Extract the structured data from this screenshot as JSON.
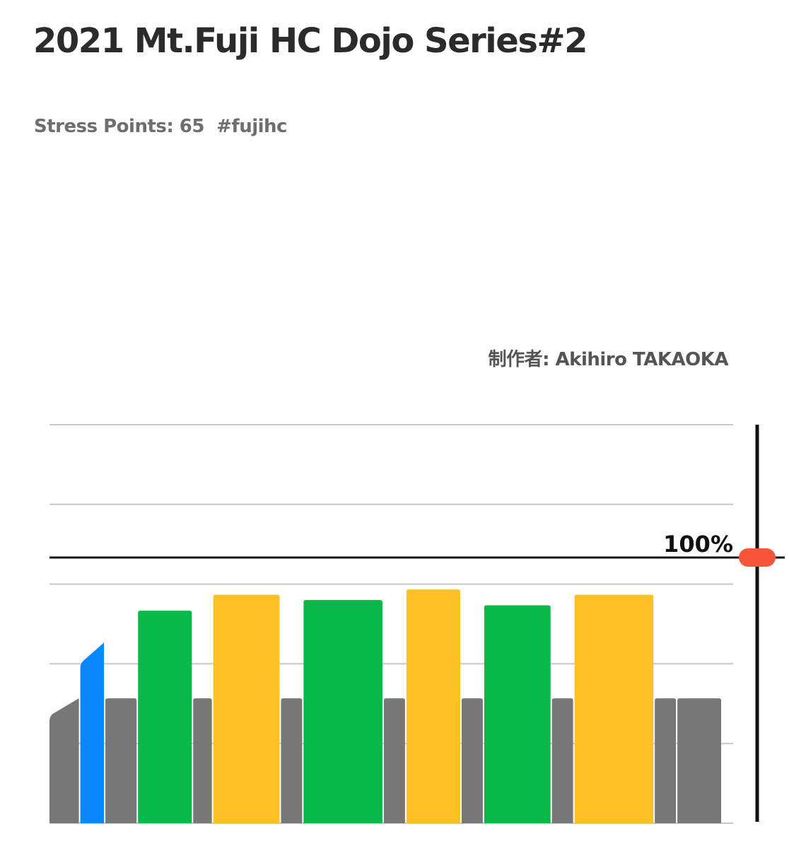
{
  "title": "2021 Mt.Fuji HC Dojo Series#2",
  "subtitle": "Stress Points: 65  #fujihc",
  "author": "制作者: Akihiro TAKAOKA",
  "colors": {
    "recovery": "#777777",
    "current": "#0a87fb",
    "green": "#08b94a",
    "yellow": "#fdc124",
    "marker": "#f5563a",
    "grid": "#c8c8c8",
    "threshold": "#111111"
  },
  "chart_data": {
    "type": "bar",
    "title": "",
    "xlabel": "",
    "ylabel": "",
    "ylim": [
      0,
      150
    ],
    "yticks": [
      0,
      30,
      60,
      90,
      120,
      150
    ],
    "grid": true,
    "threshold": {
      "value": 100,
      "label": "100%"
    },
    "current_marker": {
      "value": 100
    },
    "segments": [
      {
        "type": "ramp",
        "duration": 3.0,
        "start": 40,
        "end": 47,
        "color": "recovery"
      },
      {
        "type": "ramp",
        "duration": 2.5,
        "start": 60,
        "end": 68,
        "color": "current"
      },
      {
        "type": "bar",
        "duration": 3.25,
        "value": 47,
        "color": "recovery"
      },
      {
        "type": "bar",
        "duration": 5.5,
        "value": 80,
        "color": "green"
      },
      {
        "type": "bar",
        "duration": 2.0,
        "value": 47,
        "color": "recovery"
      },
      {
        "type": "bar",
        "duration": 6.75,
        "value": 86,
        "color": "yellow"
      },
      {
        "type": "bar",
        "duration": 2.25,
        "value": 47,
        "color": "recovery"
      },
      {
        "type": "bar",
        "duration": 8.0,
        "value": 84,
        "color": "green"
      },
      {
        "type": "bar",
        "duration": 2.25,
        "value": 47,
        "color": "recovery"
      },
      {
        "type": "bar",
        "duration": 5.5,
        "value": 88,
        "color": "yellow"
      },
      {
        "type": "bar",
        "duration": 2.25,
        "value": 47,
        "color": "recovery"
      },
      {
        "type": "bar",
        "duration": 6.75,
        "value": 82,
        "color": "green"
      },
      {
        "type": "bar",
        "duration": 2.25,
        "value": 47,
        "color": "recovery"
      },
      {
        "type": "bar",
        "duration": 8.0,
        "value": 86,
        "color": "yellow"
      },
      {
        "type": "bar",
        "duration": 2.25,
        "value": 47,
        "color": "recovery"
      },
      {
        "type": "bar",
        "duration": 4.5,
        "value": 47,
        "color": "recovery"
      }
    ]
  }
}
